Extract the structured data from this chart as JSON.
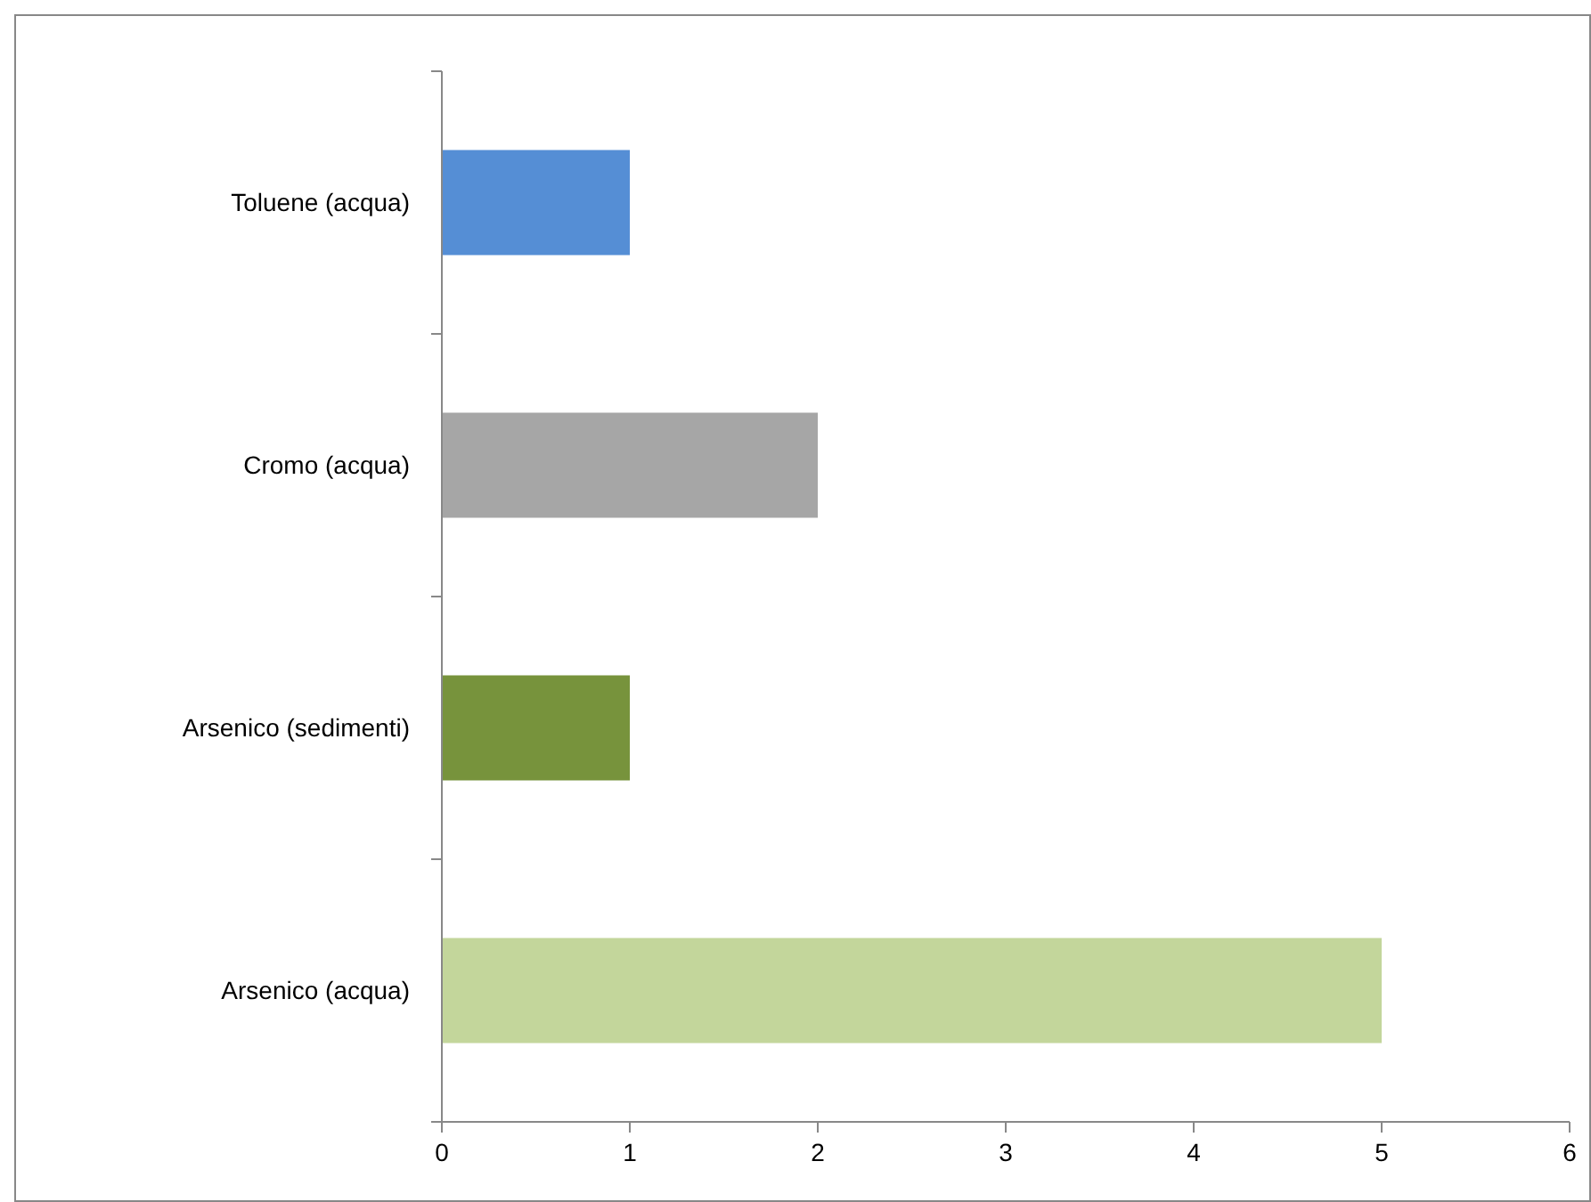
{
  "chart_data": {
    "type": "bar",
    "orientation": "horizontal",
    "categories": [
      "Toluene (acqua)",
      "Cromo (acqua)",
      "Arsenico (sedimenti)",
      "Arsenico (acqua)"
    ],
    "values": [
      1,
      2,
      1,
      5
    ],
    "colors": [
      "#558ed5",
      "#a6a6a6",
      "#77933c",
      "#c3d69b"
    ],
    "xlim": [
      0,
      6
    ],
    "xticks": [
      0,
      1,
      2,
      3,
      4,
      5,
      6
    ]
  }
}
